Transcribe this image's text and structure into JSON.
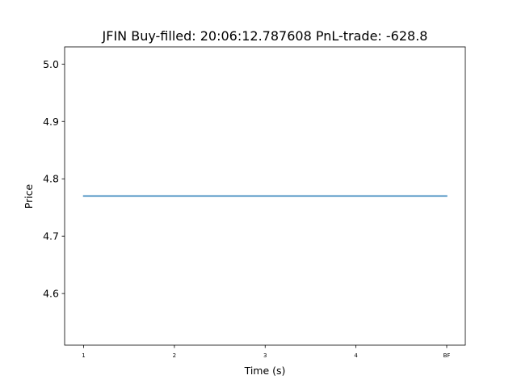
{
  "chart_data": {
    "type": "line",
    "title": "JFIN  Buy-filled:  20:06:12.787608  PnL-trade:  -628.8",
    "xlabel": "Time (s)",
    "ylabel": "Price",
    "categories": [
      "1",
      "2",
      "3",
      "4",
      "BF"
    ],
    "series": [
      {
        "values": [
          4.77,
          4.77,
          4.77,
          4.77,
          4.77
        ],
        "color": "#1f77b4"
      }
    ],
    "ylim": [
      4.51,
      5.03
    ],
    "yticks": [
      "4.6",
      "4.7",
      "4.8",
      "4.9",
      "5.0"
    ],
    "grid": false,
    "legend": false
  }
}
